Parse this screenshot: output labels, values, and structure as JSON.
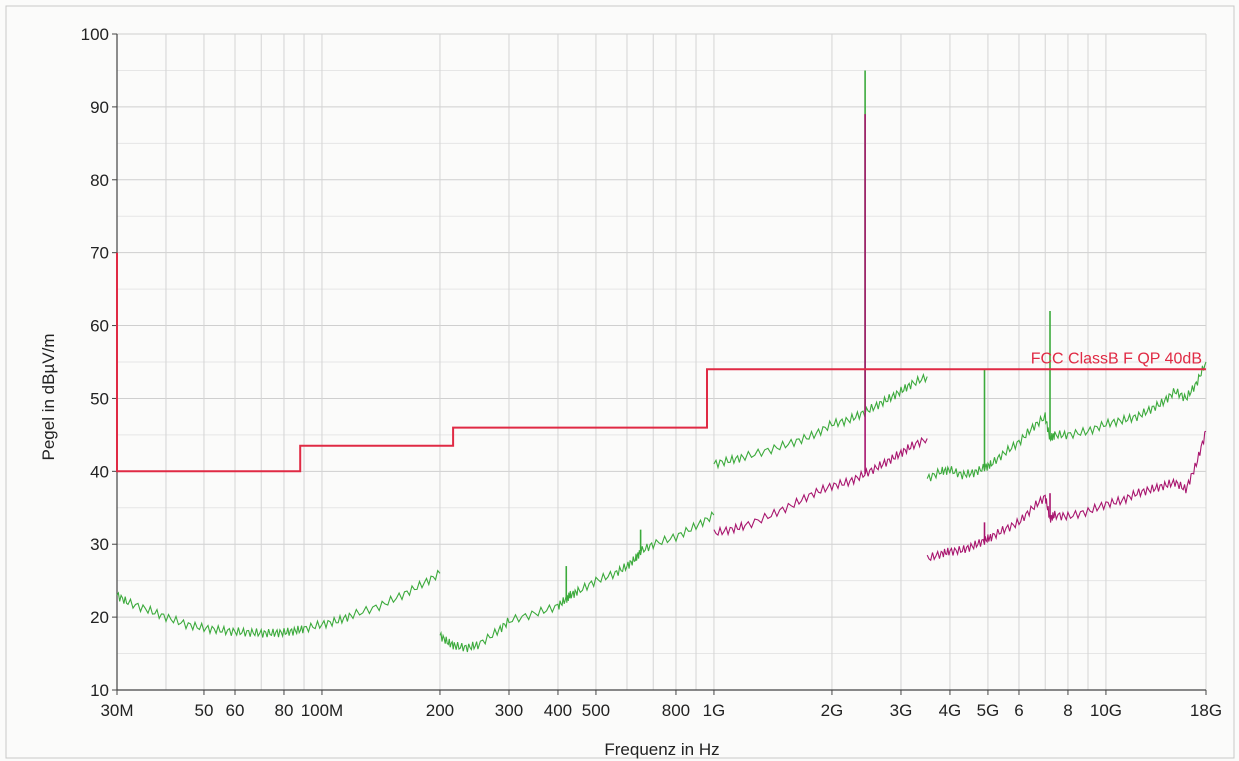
{
  "chart_data": {
    "type": "line",
    "xlabel": "Frequenz in Hz",
    "ylabel": "Pegel in dBµV/m",
    "x_scale": "log",
    "xlim": [
      30000000,
      18000000000
    ],
    "ylim": [
      10,
      100
    ],
    "grid": true,
    "y_ticks": [
      10,
      20,
      30,
      40,
      50,
      60,
      70,
      80,
      90,
      100
    ],
    "x_ticks": [
      {
        "value": 30000000,
        "label": "30M"
      },
      {
        "value": 50000000,
        "label": "50"
      },
      {
        "value": 60000000,
        "label": "60"
      },
      {
        "value": 80000000,
        "label": "80"
      },
      {
        "value": 100000000,
        "label": "100M"
      },
      {
        "value": 200000000,
        "label": "200"
      },
      {
        "value": 300000000,
        "label": "300"
      },
      {
        "value": 400000000,
        "label": "400"
      },
      {
        "value": 500000000,
        "label": "500"
      },
      {
        "value": 800000000,
        "label": "800"
      },
      {
        "value": 1000000000,
        "label": "1G"
      },
      {
        "value": 2000000000,
        "label": "2G"
      },
      {
        "value": 3000000000,
        "label": "3G"
      },
      {
        "value": 4000000000,
        "label": "4G"
      },
      {
        "value": 5000000000,
        "label": "5G"
      },
      {
        "value": 6000000000,
        "label": "6"
      },
      {
        "value": 8000000000,
        "label": "8"
      },
      {
        "value": 10000000000,
        "label": "10G"
      },
      {
        "value": 18000000000,
        "label": "18G"
      }
    ],
    "limit_line": {
      "name": "FCC ClassB F QP 40dB",
      "color": "#e02a44",
      "points": [
        [
          30000000,
          70
        ],
        [
          30000000,
          40
        ],
        [
          88000000,
          40
        ],
        [
          88000000,
          43.5
        ],
        [
          216000000,
          43.5
        ],
        [
          216000000,
          46
        ],
        [
          960000000,
          46
        ],
        [
          960000000,
          54
        ],
        [
          18000000000,
          54
        ]
      ]
    },
    "series": [
      {
        "color": "#3caa3c",
        "segments": [
          {
            "x": [
              30000000,
              32000000,
              36000000,
              40000000,
              45000000,
              50000000,
              55000000,
              60000000,
              65000000,
              70000000,
              75000000,
              80000000,
              85000000,
              90000000,
              100000000,
              110000000,
              120000000,
              140000000,
              160000000,
              180000000,
              200000000
            ],
            "y": [
              23,
              22,
              21,
              20,
              19,
              18.5,
              18.2,
              18,
              17.9,
              17.8,
              17.8,
              17.9,
              18.1,
              18.4,
              19,
              19.5,
              20.3,
              21.5,
              23,
              24.5,
              26
            ]
          },
          {
            "x": [
              200000000,
              210000000,
              220000000,
              235000000,
              250000000,
              280000000,
              300000000,
              350000000,
              400000000,
              420000000,
              430000000,
              450000000,
              500000000,
              560000000,
              600000000,
              630000000,
              650000000,
              700000000,
              800000000,
              900000000,
              1000000000
            ],
            "y": [
              17.5,
              16.5,
              16,
              15.8,
              16.2,
              18,
              19.5,
              20.5,
              21.5,
              22.5,
              23,
              23.5,
              25,
              26,
              27,
              28,
              29,
              30,
              31,
              32.5,
              34
            ]
          },
          {
            "x": [
              1000000000,
              1100000000,
              1200000000,
              1400000000,
              1600000000,
              1800000000,
              2000000000,
              2200000000,
              2400000000,
              2600000000,
              2800000000,
              3000000000,
              3200000000,
              3500000000
            ],
            "y": [
              41,
              41.5,
              42,
              43,
              44,
              45,
              46.5,
              47,
              48,
              49,
              50,
              51,
              52,
              53
            ]
          },
          {
            "x": [
              3500000000,
              3800000000,
              4000000000,
              4300000000,
              4600000000,
              4900000000,
              5100000000,
              5500000000,
              6000000000,
              6500000000,
              7000000000,
              7200000000,
              7400000000,
              8000000000,
              9000000000,
              10000000000,
              11000000000,
              12000000000,
              13000000000,
              14000000000,
              15000000000,
              16000000000,
              17000000000,
              18000000000
            ],
            "y": [
              39,
              40,
              40.2,
              39.5,
              39.8,
              40.5,
              41,
              42.5,
              44,
              46,
              47.5,
              44.5,
              45,
              45,
              45.5,
              46.5,
              47,
              47.5,
              48.5,
              49.5,
              51,
              50,
              52,
              55
            ]
          }
        ],
        "spikes": [
          {
            "x": 420000000,
            "y": 27
          },
          {
            "x": 650000000,
            "y": 32
          },
          {
            "x": 2430000000,
            "y": 95
          },
          {
            "x": 4900000000,
            "y": 54
          },
          {
            "x": 7200000000,
            "y": 62
          }
        ]
      },
      {
        "color": "#a8156e",
        "segments": [
          {
            "x": [
              1000000000,
              1100000000,
              1200000000,
              1400000000,
              1600000000,
              1800000000,
              2000000000,
              2200000000,
              2400000000,
              2600000000,
              2800000000,
              3000000000,
              3200000000,
              3500000000
            ],
            "y": [
              31.5,
              32,
              32.5,
              34,
              35.5,
              37,
              38,
              38.5,
              39.5,
              40.5,
              41.5,
              42.5,
              43.5,
              44.5
            ]
          },
          {
            "x": [
              3500000000,
              3800000000,
              4000000000,
              4300000000,
              4600000000,
              4900000000,
              5100000000,
              5500000000,
              6000000000,
              6500000000,
              7000000000,
              7200000000,
              7400000000,
              8000000000,
              9000000000,
              10000000000,
              11000000000,
              12000000000,
              13000000000,
              14000000000,
              15000000000,
              16000000000,
              17000000000,
              18000000000
            ],
            "y": [
              28,
              28.7,
              29,
              29.2,
              29.8,
              30.5,
              31,
              32,
              33,
              35,
              36.5,
              33.5,
              34,
              33.8,
              34.5,
              35.5,
              36,
              37,
              37.5,
              38,
              38.5,
              37.5,
              41,
              45.5
            ]
          }
        ],
        "spikes": [
          {
            "x": 2430000000,
            "y": 89
          },
          {
            "x": 4900000000,
            "y": 33
          },
          {
            "x": 7200000000,
            "y": 37
          }
        ]
      }
    ]
  }
}
